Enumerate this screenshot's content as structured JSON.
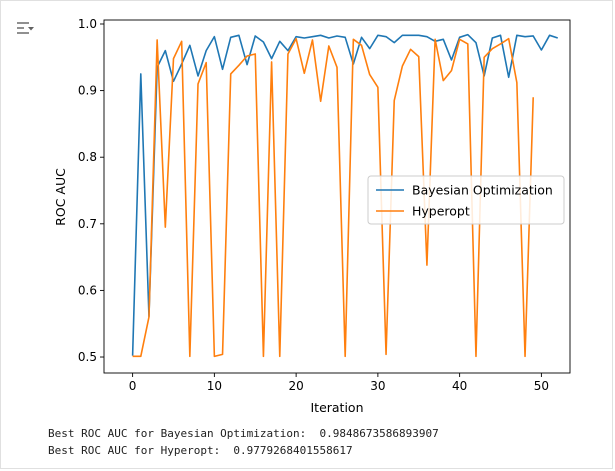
{
  "output_lines": [
    "Best ROC AUC for Bayesian Optimization:  0.9848673586893907",
    "Best ROC AUC for Hyperopt:  0.9779268401558617"
  ],
  "icons": {
    "output_toggle": "output-collapse-icon"
  },
  "chart_data": {
    "type": "line",
    "xlabel": "Iteration",
    "ylabel": "ROC AUC",
    "xlim": [
      -3.5,
      53.5
    ],
    "ylim": [
      0.476,
      1.006
    ],
    "xticks": [
      0,
      10,
      20,
      30,
      40,
      50
    ],
    "yticks": [
      0.5,
      0.6,
      0.7,
      0.8,
      0.9,
      1.0
    ],
    "xtick_labels": [
      "0",
      "10",
      "20",
      "30",
      "40",
      "50"
    ],
    "ytick_labels": [
      "0.5",
      "0.6",
      "0.7",
      "0.8",
      "0.9",
      "1.0"
    ],
    "grid": false,
    "legend_position": "center-right",
    "series": [
      {
        "name": "Bayesian Optimization",
        "color": "#1f77b4",
        "values": [
          0.502,
          0.925,
          0.561,
          0.935,
          0.96,
          0.914,
          0.94,
          0.968,
          0.922,
          0.96,
          0.981,
          0.932,
          0.98,
          0.983,
          0.939,
          0.982,
          0.973,
          0.948,
          0.974,
          0.96,
          0.981,
          0.979,
          0.981,
          0.983,
          0.979,
          0.982,
          0.98,
          0.94,
          0.98,
          0.963,
          0.983,
          0.981,
          0.972,
          0.983,
          0.983,
          0.983,
          0.981,
          0.974,
          0.977,
          0.946,
          0.98,
          0.984,
          0.972,
          0.922,
          0.979,
          0.983,
          0.92,
          0.983,
          0.981,
          0.982,
          0.961,
          0.983,
          0.979
        ]
      },
      {
        "name": "Hyperopt",
        "color": "#ff7f0e",
        "values": [
          0.501,
          0.501,
          0.56,
          0.976,
          0.695,
          0.948,
          0.974,
          0.501,
          0.91,
          0.942,
          0.501,
          0.504,
          0.925,
          0.938,
          0.952,
          0.955,
          0.501,
          0.943,
          0.501,
          0.955,
          0.978,
          0.926,
          0.976,
          0.884,
          0.967,
          0.935,
          0.501,
          0.977,
          0.968,
          0.924,
          0.905,
          0.504,
          0.885,
          0.937,
          0.962,
          0.951,
          0.638,
          0.977,
          0.915,
          0.93,
          0.977,
          0.97,
          0.501,
          0.95,
          0.963,
          0.97,
          0.978,
          0.912,
          0.501,
          0.89
        ]
      }
    ]
  }
}
